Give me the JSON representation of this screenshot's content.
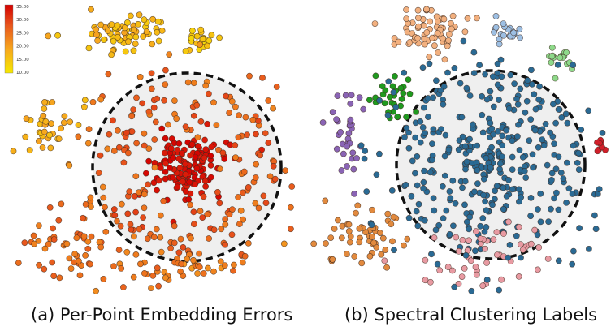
{
  "colors": {
    "error_low": "#f5e800",
    "error_high": "#d40000",
    "cluster_main": "#2a6a94",
    "cluster_orange": "#e28a3e",
    "cluster_peach": "#f2b07f",
    "cluster_blue_light": "#9dbfe3",
    "cluster_green_light": "#8ed98a",
    "cluster_green_dark": "#1f9a1f",
    "cluster_purple": "#8a64b5",
    "cluster_lavender": "#b89ad6",
    "cluster_pink": "#e89aa2",
    "cluster_red": "#d11f2a",
    "circle_fill": "#efefef"
  },
  "chart_data": [
    {
      "type": "scatter",
      "title": "",
      "caption": "(a) Per-Point Embedding Errors",
      "xlabel": "",
      "ylabel": "",
      "colorbar": {
        "min": 10.0,
        "max": 35.0,
        "ticks": [
          "35.00",
          "30.00",
          "25.00",
          "20.00",
          "15.00",
          "10.00"
        ],
        "palette": [
          "#f5e800",
          "#f7a81e",
          "#e8561d",
          "#d40000"
        ],
        "placement": "top-left"
      },
      "circle_annotation": {
        "style": "dashed",
        "fill": "#efefef"
      },
      "clusters": [
        {
          "region": "core",
          "value_range": [
            32,
            35
          ],
          "count": 140
        },
        {
          "region": "ring",
          "value_range": [
            22,
            29
          ],
          "count": 170
        },
        {
          "region": "top-cluster",
          "value_range": [
            14,
            19
          ],
          "count": 70
        },
        {
          "region": "top-right-cluster",
          "value_range": [
            12,
            16
          ],
          "count": 22
        },
        {
          "region": "left-cluster",
          "value_range": [
            15,
            19
          ],
          "count": 35
        },
        {
          "region": "lower-left-cluster",
          "value_range": [
            22,
            27
          ],
          "count": 55
        },
        {
          "region": "bottom-cluster",
          "value_range": [
            20,
            25
          ],
          "count": 45
        }
      ]
    },
    {
      "type": "scatter",
      "title": "",
      "caption": "(b) Spectral Clustering Labels",
      "xlabel": "",
      "ylabel": "",
      "circle_annotation": {
        "style": "dashed",
        "fill": "#efefef"
      },
      "clusters": [
        {
          "label": "main",
          "color": "#2a6a94",
          "count": 330
        },
        {
          "label": "top-orange",
          "color": "#f2b07f",
          "count": 70
        },
        {
          "label": "top-light-blue",
          "color": "#9dbfe3",
          "count": 22
        },
        {
          "label": "right-light-green",
          "color": "#8ed98a",
          "count": 16
        },
        {
          "label": "green",
          "color": "#1f9a1f",
          "count": 30
        },
        {
          "label": "purple",
          "color": "#8a64b5",
          "count": 35
        },
        {
          "label": "orange",
          "color": "#e28a3e",
          "count": 55
        },
        {
          "label": "pink",
          "color": "#e89aa2",
          "count": 50
        },
        {
          "label": "red",
          "color": "#d11f2a",
          "count": 8
        }
      ]
    }
  ]
}
